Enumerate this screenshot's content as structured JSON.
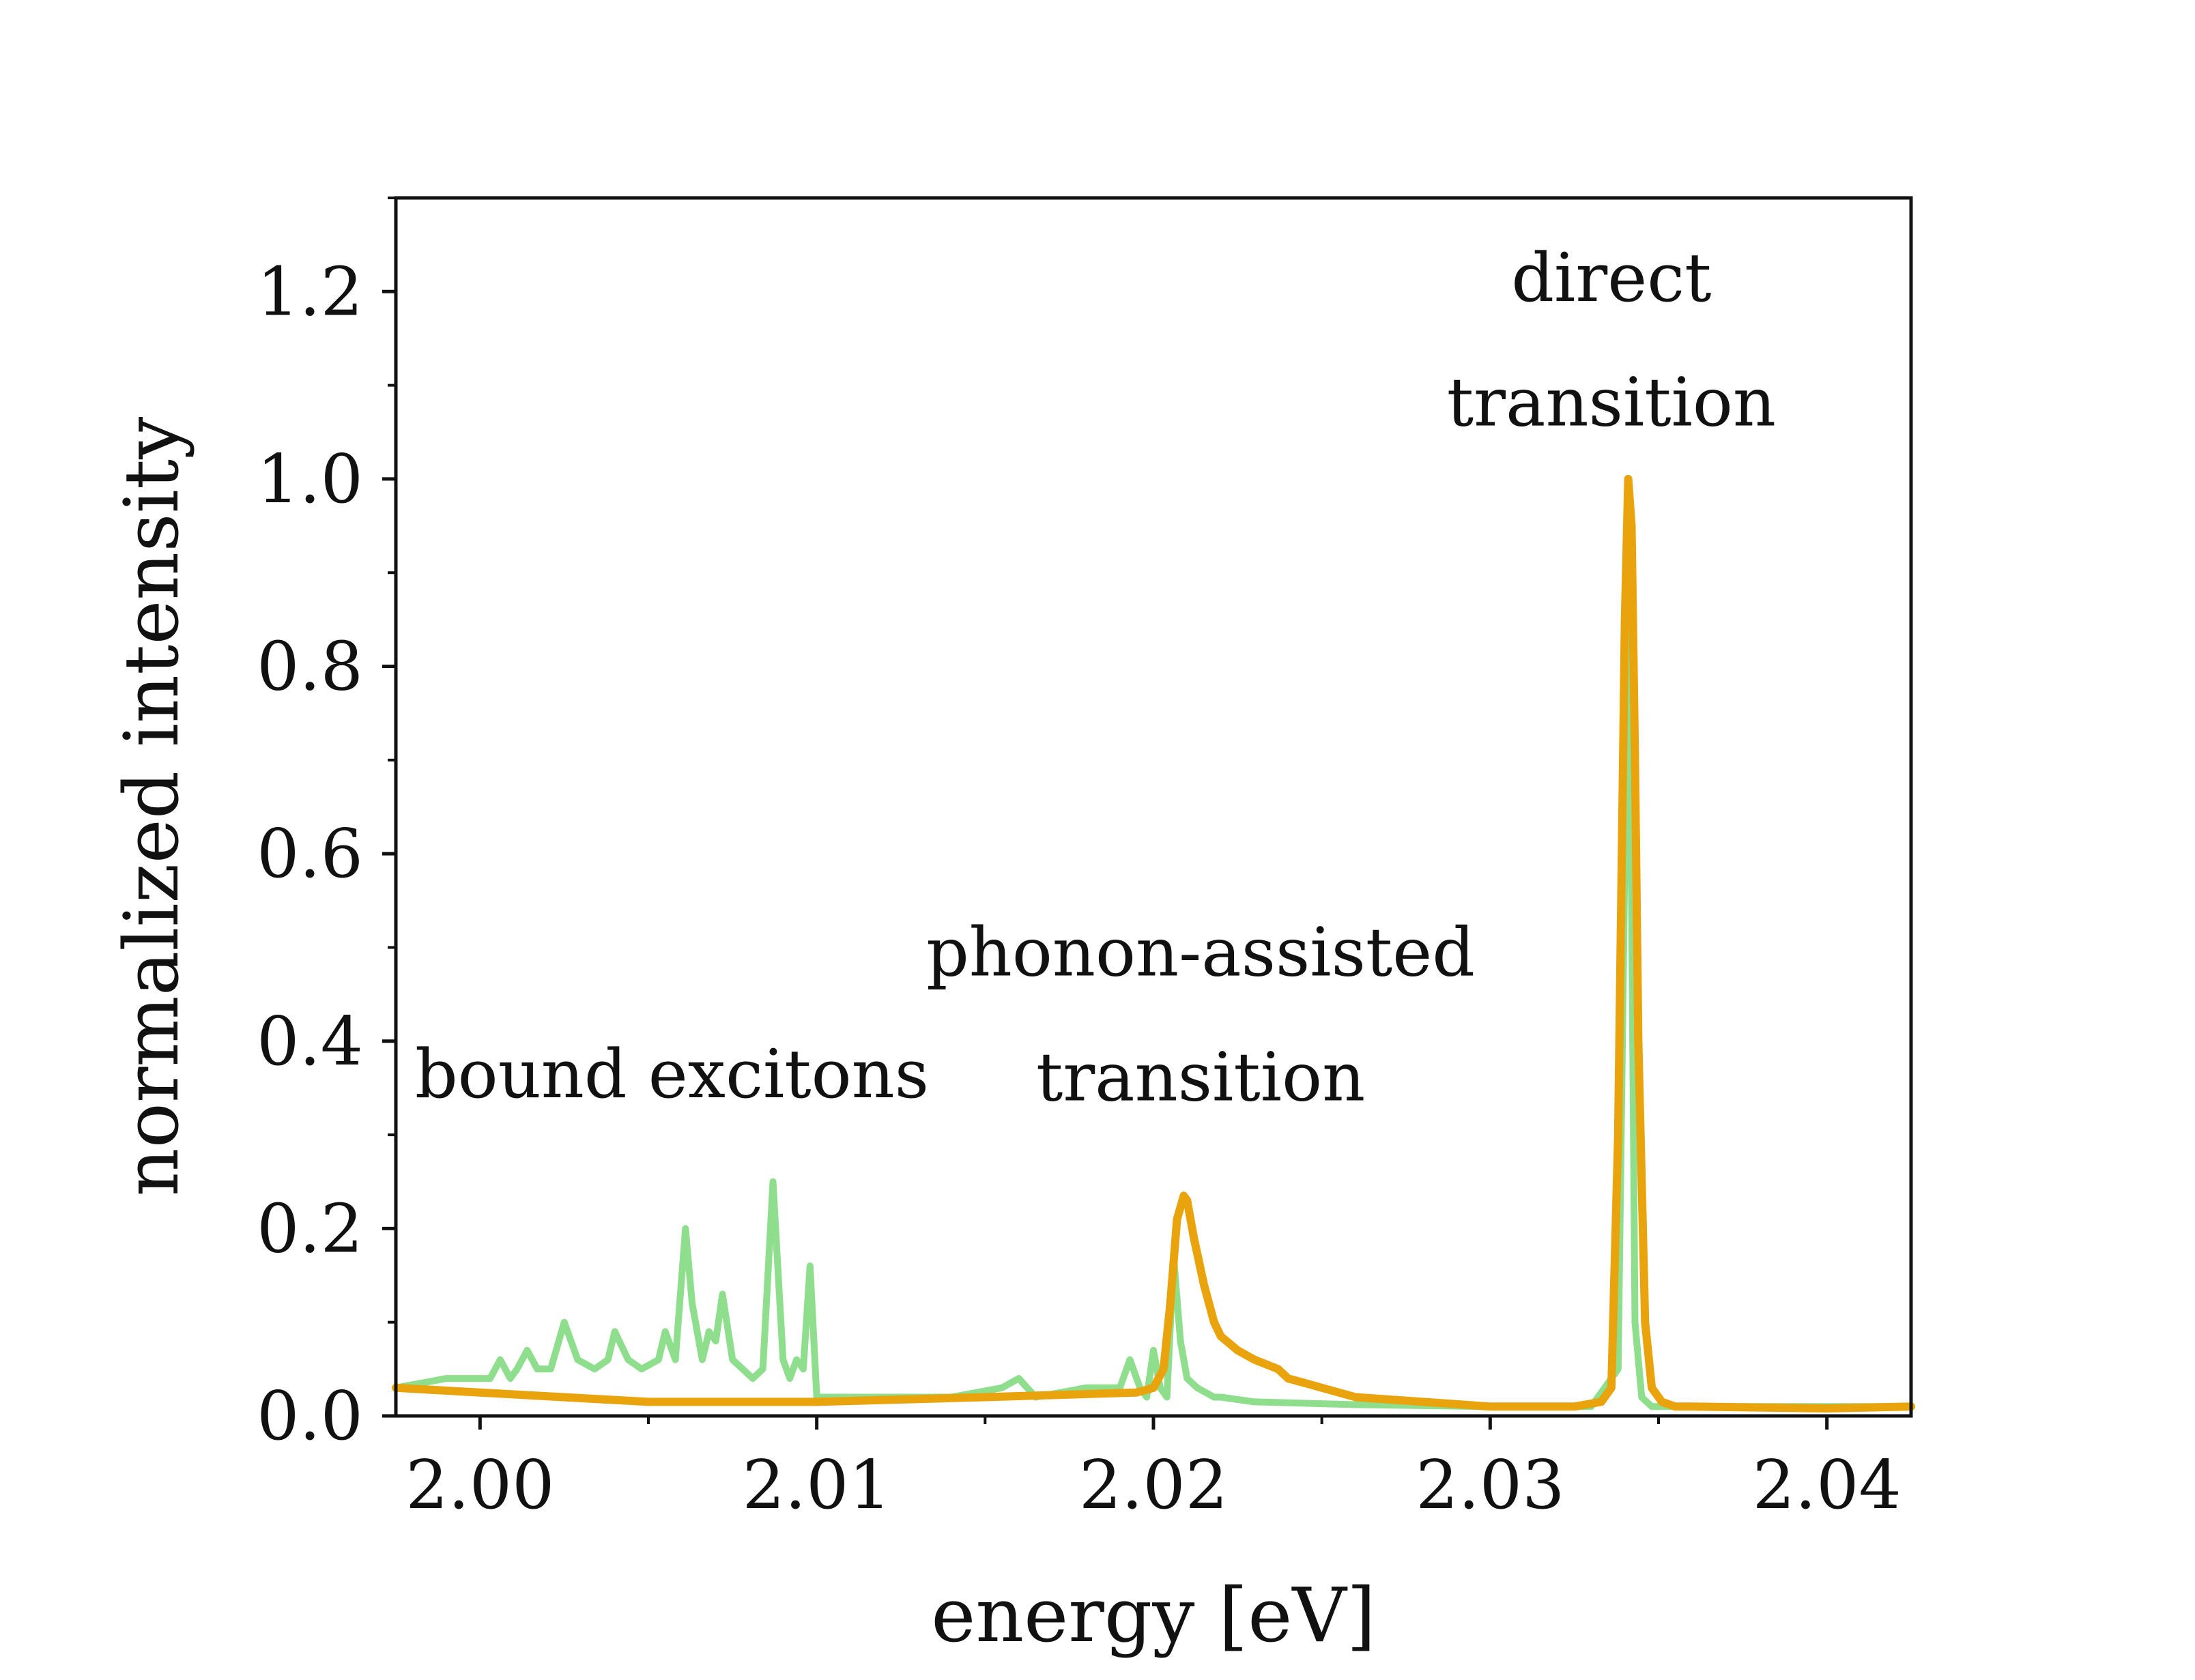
{
  "chart_data": {
    "type": "line",
    "title": "",
    "xlabel": "energy [eV]",
    "ylabel": "normalized intensity",
    "xlim": [
      1.9975,
      2.0425
    ],
    "ylim": [
      0.0,
      1.3
    ],
    "grid": false,
    "x_ticks": [
      2.0,
      2.01,
      2.02,
      2.03,
      2.04
    ],
    "x_tick_labels": [
      "2.00",
      "2.01",
      "2.02",
      "2.03",
      "2.04"
    ],
    "x_minor_ticks": [
      2.005,
      2.015,
      2.025,
      2.035
    ],
    "y_ticks": [
      0.0,
      0.2,
      0.4,
      0.6,
      0.8,
      1.0,
      1.2
    ],
    "y_tick_labels": [
      "0.0",
      "0.2",
      "0.4",
      "0.6",
      "0.8",
      "1.0",
      "1.2"
    ],
    "y_minor_ticks": [
      0.1,
      0.3,
      0.5,
      0.7,
      0.9,
      1.1,
      1.3
    ],
    "annotations": [
      {
        "lines": [
          "bound excitons"
        ],
        "x": 2.0057,
        "y": 0.34
      },
      {
        "lines": [
          "phonon-assisted",
          "transition"
        ],
        "x": 2.0214,
        "y": 0.47,
        "line_step": 0.133
      },
      {
        "lines": [
          "direct",
          "transition"
        ],
        "x": 2.0336,
        "y": 1.19,
        "line_step": 0.133
      }
    ],
    "series": [
      {
        "name": "green",
        "color": "#8ede8e",
        "x": [
          1.9975,
          1.999,
          2.0003,
          2.0006,
          2.0009,
          2.0011,
          2.0014,
          2.0017,
          2.0021,
          2.0025,
          2.0029,
          2.0034,
          2.0038,
          2.004,
          2.0044,
          2.0048,
          2.0053,
          2.0055,
          2.0058,
          2.0061,
          2.0063,
          2.0066,
          2.0068,
          2.007,
          2.0072,
          2.0075,
          2.0078,
          2.0081,
          2.0084,
          2.0087,
          2.009,
          2.0092,
          2.0094,
          2.0096,
          2.0098,
          2.01,
          2.0102,
          2.0105,
          2.011,
          2.012,
          2.014,
          2.0155,
          2.016,
          2.0165,
          2.018,
          2.019,
          2.0193,
          2.0196,
          2.0198,
          2.02,
          2.0202,
          2.0204,
          2.0206,
          2.0208,
          2.021,
          2.0213,
          2.0218,
          2.022,
          2.023,
          2.026,
          2.03,
          2.033,
          2.0338,
          2.034,
          2.0341,
          2.0342,
          2.0343,
          2.0345,
          2.0348,
          2.0352,
          2.036,
          2.038,
          2.04,
          2.0425
        ],
        "y": [
          0.03,
          0.04,
          0.04,
          0.06,
          0.04,
          0.05,
          0.07,
          0.05,
          0.05,
          0.1,
          0.06,
          0.05,
          0.06,
          0.09,
          0.06,
          0.05,
          0.06,
          0.09,
          0.06,
          0.2,
          0.12,
          0.06,
          0.09,
          0.08,
          0.13,
          0.06,
          0.05,
          0.04,
          0.05,
          0.25,
          0.06,
          0.04,
          0.06,
          0.05,
          0.16,
          0.02,
          0.02,
          0.02,
          0.02,
          0.02,
          0.02,
          0.03,
          0.04,
          0.02,
          0.03,
          0.03,
          0.06,
          0.03,
          0.02,
          0.07,
          0.03,
          0.02,
          0.17,
          0.08,
          0.04,
          0.03,
          0.02,
          0.02,
          0.015,
          0.012,
          0.01,
          0.01,
          0.05,
          0.6,
          0.98,
          0.55,
          0.1,
          0.02,
          0.01,
          0.01,
          0.01,
          0.01,
          0.01,
          0.01
        ]
      },
      {
        "name": "orange",
        "color": "#e8a30d",
        "x": [
          1.9975,
          2.0,
          2.005,
          2.01,
          2.015,
          2.0195,
          2.02,
          2.0203,
          2.0205,
          2.0207,
          2.0209,
          2.021,
          2.0212,
          2.0215,
          2.0218,
          2.022,
          2.0225,
          2.023,
          2.0237,
          2.024,
          2.0245,
          2.026,
          2.028,
          2.03,
          2.0325,
          2.0333,
          2.0336,
          2.0338,
          2.034,
          2.0341,
          2.0342,
          2.0343,
          2.0344,
          2.0346,
          2.0348,
          2.0351,
          2.0355,
          2.036,
          2.04,
          2.0425
        ],
        "y": [
          0.03,
          0.025,
          0.015,
          0.015,
          0.02,
          0.025,
          0.03,
          0.05,
          0.12,
          0.21,
          0.235,
          0.23,
          0.19,
          0.14,
          0.1,
          0.085,
          0.07,
          0.06,
          0.05,
          0.04,
          0.035,
          0.02,
          0.015,
          0.01,
          0.01,
          0.015,
          0.03,
          0.3,
          0.85,
          1.0,
          0.95,
          0.7,
          0.4,
          0.1,
          0.03,
          0.015,
          0.01,
          0.01,
          0.008,
          0.01
        ]
      }
    ]
  }
}
